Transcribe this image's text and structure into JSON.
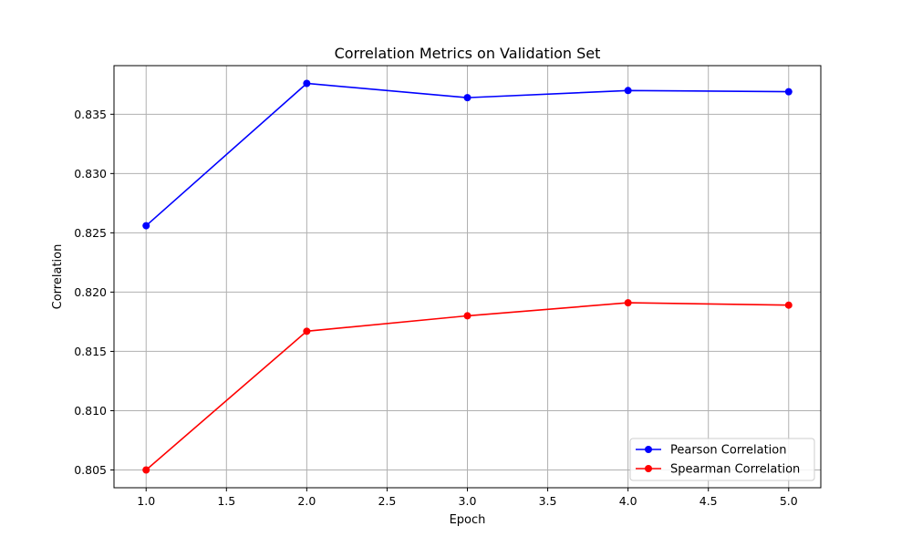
{
  "chart_data": {
    "type": "line",
    "title": "Correlation Metrics on Validation Set",
    "xlabel": "Epoch",
    "ylabel": "Correlation",
    "x": [
      1.0,
      2.0,
      3.0,
      4.0,
      5.0
    ],
    "xlim": [
      0.8,
      5.2
    ],
    "ylim": [
      0.8035,
      0.8391
    ],
    "xticks": [
      1.0,
      1.5,
      2.0,
      2.5,
      3.0,
      3.5,
      4.0,
      4.5,
      5.0
    ],
    "xtick_labels": [
      "1.0",
      "1.5",
      "2.0",
      "2.5",
      "3.0",
      "3.5",
      "4.0",
      "4.5",
      "5.0"
    ],
    "yticks": [
      0.805,
      0.81,
      0.815,
      0.82,
      0.825,
      0.83,
      0.835
    ],
    "ytick_labels": [
      "0.805",
      "0.810",
      "0.815",
      "0.820",
      "0.825",
      "0.830",
      "0.835"
    ],
    "grid": true,
    "legend_position": "lower-right",
    "series": [
      {
        "name": "Pearson Correlation",
        "color": "#0000ff",
        "marker": "circle",
        "values": [
          0.8256,
          0.8376,
          0.8364,
          0.837,
          0.8369
        ]
      },
      {
        "name": "Spearman Correlation",
        "color": "#ff0000",
        "marker": "circle",
        "values": [
          0.805,
          0.8167,
          0.818,
          0.8191,
          0.8189
        ]
      }
    ]
  }
}
